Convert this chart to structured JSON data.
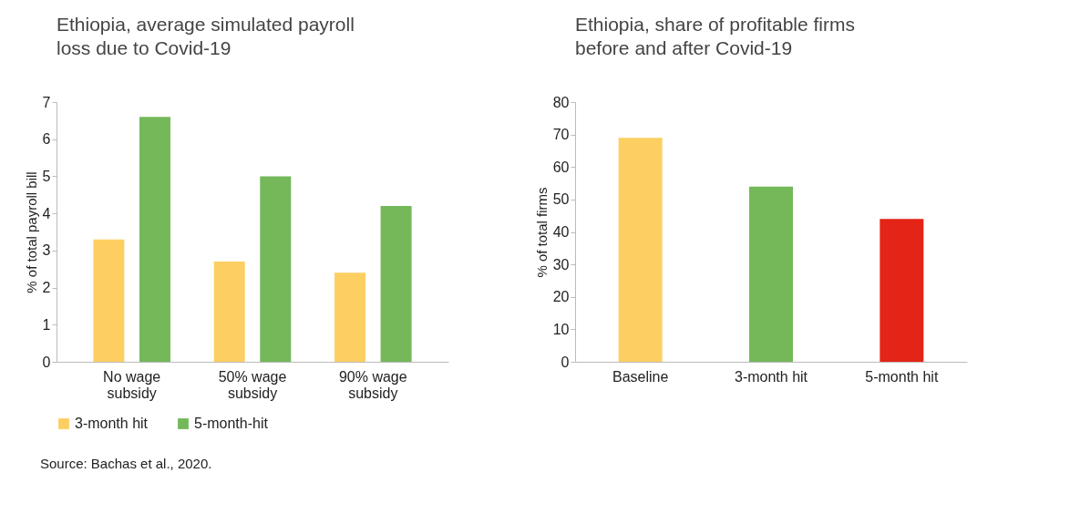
{
  "chart_data": [
    {
      "type": "bar",
      "title": "Ethiopia, average simulated payroll loss due to Covid-19",
      "ylabel": "% of total payroll bill",
      "categories": [
        "No wage subsidy",
        "50% wage subsidy",
        "90% wage subsidy"
      ],
      "series": [
        {
          "name": "3-month hit",
          "color": "#fdcf62",
          "values": [
            3.3,
            2.7,
            2.4
          ]
        },
        {
          "name": "5-month-hit",
          "color": "#74b85a",
          "values": [
            6.6,
            5.0,
            4.2
          ]
        }
      ],
      "ylim": [
        0,
        7
      ],
      "yticks": [
        0,
        1,
        2,
        3,
        4,
        5,
        6,
        7
      ],
      "legend": "bottom",
      "annotations": [
        "Source: Bachas et al., 2020."
      ]
    },
    {
      "type": "bar",
      "title": "Ethiopia, share of profitable firms before and after Covid-19",
      "ylabel": "% of total firms",
      "categories": [
        "Baseline",
        "3-month hit",
        "5-month hit"
      ],
      "values": [
        69,
        54,
        44
      ],
      "colors": [
        "#fdcf62",
        "#74b85a",
        "#e42416"
      ],
      "ylim": [
        0,
        80
      ],
      "yticks": [
        0,
        10,
        20,
        30,
        40,
        50,
        60,
        70,
        80
      ]
    }
  ]
}
